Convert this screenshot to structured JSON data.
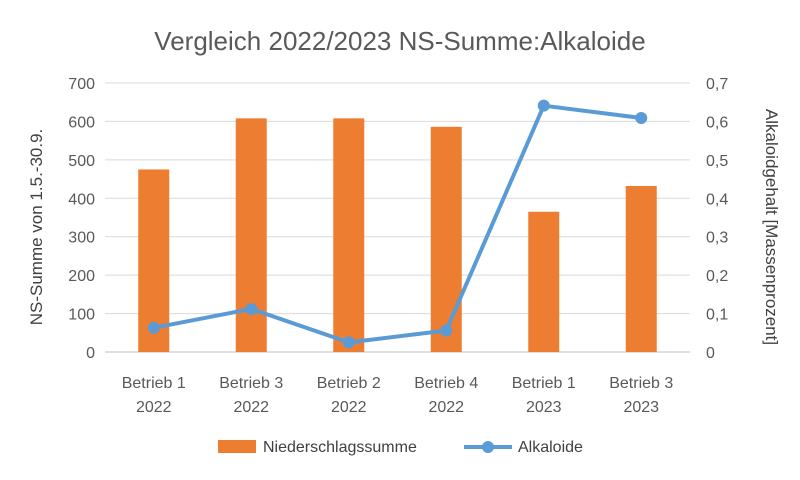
{
  "chart_data": {
    "type": "bar",
    "title": "Vergleich 2022/2023 NS-Summe:Alkaloide",
    "ylabel": "NS-Summe von 1.5.-30.9.",
    "y2label": "Alkaloidgehalt [Massenprozent]",
    "categories": [
      [
        "Betrieb 1",
        "2022"
      ],
      [
        "Betrieb 3",
        "2022"
      ],
      [
        "Betrieb 2",
        "2022"
      ],
      [
        "Betrieb 4",
        "2022"
      ],
      [
        "Betrieb 1",
        "2023"
      ],
      [
        "Betrieb 3",
        "2023"
      ]
    ],
    "ylim": [
      0,
      700
    ],
    "y_ticks": [
      "0",
      "100",
      "200",
      "300",
      "400",
      "500",
      "600",
      "700"
    ],
    "y2lim": [
      0,
      0.7
    ],
    "y2_ticks": [
      "0",
      "0,1",
      "0,2",
      "0,3",
      "0,4",
      "0,5",
      "0,6",
      "0,7"
    ],
    "grid": true,
    "legend_position": "bottom",
    "series": [
      {
        "name": "Niederschlagssumme",
        "type": "bar",
        "axis": "left",
        "color": "#ED7D31",
        "values": [
          475,
          608,
          608,
          586,
          365,
          432
        ]
      },
      {
        "name": "Alkaloide",
        "type": "line",
        "axis": "right",
        "color": "#5B9BD5",
        "values": [
          0.063,
          0.112,
          0.025,
          0.056,
          0.641,
          0.609
        ]
      }
    ]
  }
}
